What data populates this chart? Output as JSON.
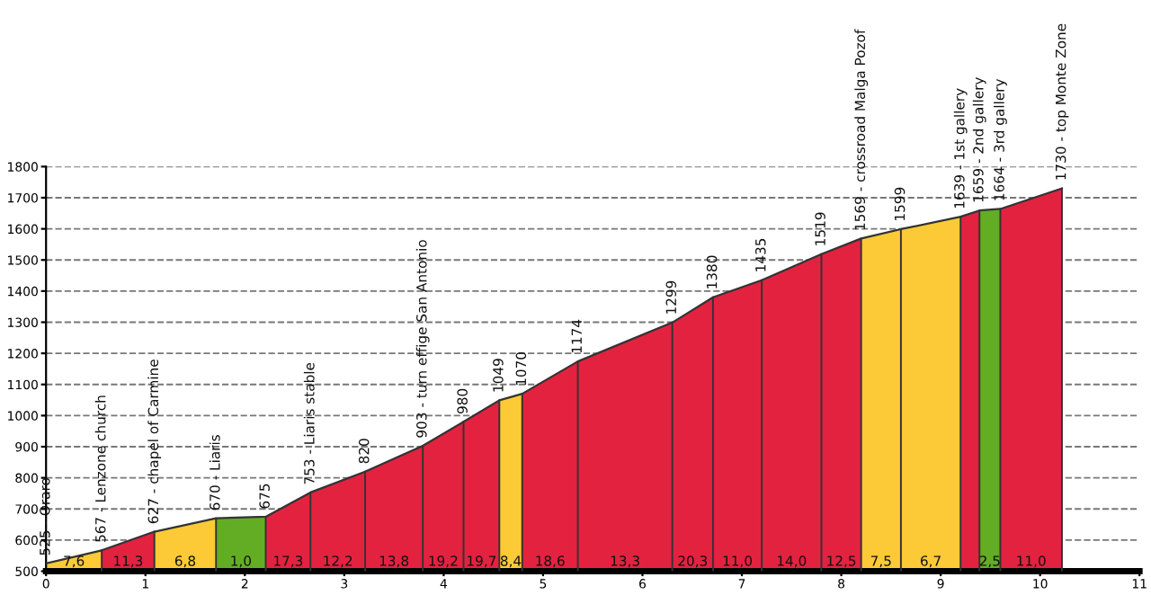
{
  "chart_data": {
    "type": "area",
    "xlim": [
      0,
      11
    ],
    "xticks": [
      0,
      1,
      2,
      3,
      4,
      5,
      6,
      7,
      8,
      9,
      10,
      11
    ],
    "ylim": [
      500,
      1800
    ],
    "yticks": [
      500,
      600,
      700,
      800,
      900,
      1000,
      1100,
      1200,
      1300,
      1400,
      1500,
      1600,
      1700,
      1800
    ],
    "grid": "y",
    "series": [
      {
        "color": "#fbca36",
        "x": [
          0,
          0.56
        ],
        "values": [
          525,
          567
        ]
      },
      {
        "color": "#e32240",
        "x": [
          0.56,
          1.09
        ],
        "values": [
          567,
          627
        ]
      },
      {
        "color": "#fbca36",
        "x": [
          1.09,
          1.71
        ],
        "values": [
          627,
          670
        ]
      },
      {
        "color": "#62ad24",
        "x": [
          1.71,
          2.21
        ],
        "values": [
          670,
          675
        ]
      },
      {
        "color": "#e32240",
        "x": [
          2.21,
          2.66,
          3.21,
          3.79,
          4.2,
          4.56
        ],
        "values": [
          675,
          753,
          820,
          903,
          980,
          1049
        ]
      },
      {
        "color": "#fbca36",
        "x": [
          4.56,
          4.79
        ],
        "values": [
          1049,
          1070
        ]
      },
      {
        "color": "#e32240",
        "x": [
          4.79,
          5.35,
          6.3,
          6.71,
          7.2,
          7.8,
          8.2
        ],
        "values": [
          1070,
          1174,
          1299,
          1380,
          1435,
          1519,
          1569
        ]
      },
      {
        "color": "#fbca36",
        "x": [
          8.2,
          8.6,
          9.2
        ],
        "values": [
          1569,
          1599,
          1639
        ]
      },
      {
        "color": "#e32240",
        "x": [
          9.2,
          9.39
        ],
        "values": [
          1639,
          1659
        ]
      },
      {
        "color": "#62ad24",
        "x": [
          9.39,
          9.6
        ],
        "values": [
          1659,
          1664
        ]
      },
      {
        "color": "#e32240",
        "x": [
          9.6,
          10.22
        ],
        "values": [
          1664,
          1730
        ]
      },
      {
        "type": "line",
        "color": "#333333",
        "x": [
          0,
          0.56,
          1.09,
          1.71,
          2.21,
          2.66,
          3.21,
          3.79,
          4.2,
          4.56,
          4.79,
          5.35,
          6.3,
          6.71,
          7.2,
          7.8,
          8.2,
          8.6,
          9.2,
          9.39,
          9.6,
          10.22
        ],
        "values": [
          525,
          567,
          627,
          670,
          675,
          753,
          820,
          903,
          980,
          1049,
          1070,
          1174,
          1299,
          1380,
          1435,
          1519,
          1569,
          1599,
          1639,
          1659,
          1664,
          1730
        ],
        "value_labels": [
          "525 - Oraro",
          "567 - Lenzone church",
          "627 - chapel of Carmine",
          "670 - Liaris",
          "675",
          "753 - Liaris stable",
          "820",
          "903 - turn effige San Antonio",
          "980",
          "1049",
          "1070",
          "1174",
          "1299",
          "1380",
          "1435",
          "1519",
          "1569 - crossroad Malga Pozof",
          "1599",
          "1639 - 1st gallery",
          "1659 - 2nd gallery",
          "1664 - 3rd gallery",
          "1730 - top Monte Zone"
        ]
      }
    ],
    "annotations": [
      {
        "text": "7,6",
        "x": 0.28,
        "y": 500
      },
      {
        "text": "11,3",
        "x": 0.825,
        "y": 500
      },
      {
        "text": "6,8",
        "x": 1.4,
        "y": 500
      },
      {
        "text": "1,0",
        "x": 1.96,
        "y": 500
      },
      {
        "text": "17,3",
        "x": 2.435,
        "y": 500
      },
      {
        "text": "12,2",
        "x": 2.935,
        "y": 500
      },
      {
        "text": "13,8",
        "x": 3.5,
        "y": 500
      },
      {
        "text": "19,2",
        "x": 3.995,
        "y": 500
      },
      {
        "text": "19,7",
        "x": 4.38,
        "y": 500
      },
      {
        "text": "8,4",
        "x": 4.675,
        "y": 500
      },
      {
        "text": "18,6",
        "x": 5.07,
        "y": 500
      },
      {
        "text": "13,3",
        "x": 5.825,
        "y": 500
      },
      {
        "text": "20,3",
        "x": 6.505,
        "y": 500
      },
      {
        "text": "11,0",
        "x": 6.955,
        "y": 500
      },
      {
        "text": "14,0",
        "x": 7.5,
        "y": 500
      },
      {
        "text": "12,5",
        "x": 8.0,
        "y": 500
      },
      {
        "text": "7,5",
        "x": 8.4,
        "y": 500
      },
      {
        "text": "6,7",
        "x": 8.9,
        "y": 500
      },
      {
        "text": "2,5",
        "x": 9.495,
        "y": 500
      },
      {
        "text": "11,0",
        "x": 9.91,
        "y": 500
      }
    ]
  }
}
